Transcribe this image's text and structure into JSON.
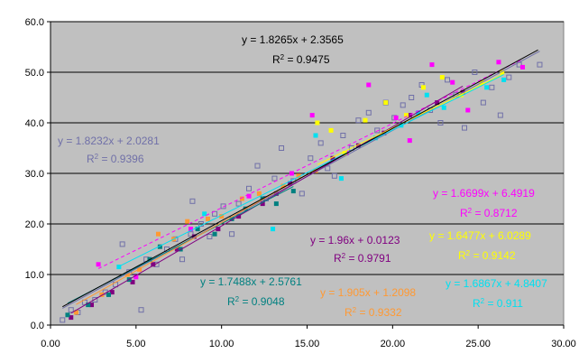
{
  "chart_data": {
    "type": "scatter",
    "title": "",
    "xlabel": "",
    "ylabel": "",
    "xlim": [
      0,
      30
    ],
    "ylim": [
      0,
      60
    ],
    "x_ticks": [
      "0.00",
      "5.00",
      "10.00",
      "15.00",
      "20.00",
      "25.00",
      "30.00"
    ],
    "y_ticks": [
      "0.0",
      "10.0",
      "20.0",
      "30.0",
      "40.0",
      "50.0",
      "60.0"
    ],
    "grid": "horizontal",
    "plot_background": "#c0c0c0",
    "legend": "none",
    "series": [
      {
        "color": "#7070a8",
        "marker": "hollow-square",
        "line_dash": "none",
        "slope": 1.8232,
        "intercept": 2.0281,
        "equation": "y = 1.8232x + 2.0281",
        "r2_label": "R",
        "r2_value": "= 0.9396",
        "points": [
          [
            0.7,
            1.0
          ],
          [
            1.2,
            3.0
          ],
          [
            1.6,
            2.5
          ],
          [
            2.0,
            4.5
          ],
          [
            2.6,
            5.0
          ],
          [
            3.2,
            6.5
          ],
          [
            3.8,
            8.0
          ],
          [
            4.2,
            16.0
          ],
          [
            4.6,
            10.5
          ],
          [
            5.3,
            3.0
          ],
          [
            5.6,
            13.0
          ],
          [
            6.2,
            12.0
          ],
          [
            6.8,
            15.0
          ],
          [
            7.3,
            17.0
          ],
          [
            7.7,
            13.0
          ],
          [
            8.2,
            18.0
          ],
          [
            8.3,
            24.5
          ],
          [
            8.8,
            20.0
          ],
          [
            9.3,
            17.5
          ],
          [
            9.6,
            22.0
          ],
          [
            10.1,
            23.5
          ],
          [
            10.6,
            18.0
          ],
          [
            11.0,
            24.0
          ],
          [
            11.6,
            27.0
          ],
          [
            12.1,
            31.5
          ],
          [
            12.6,
            25.0
          ],
          [
            13.1,
            29.0
          ],
          [
            13.5,
            35.0
          ],
          [
            14.2,
            28.5
          ],
          [
            14.7,
            26.0
          ],
          [
            15.2,
            33.0
          ],
          [
            15.8,
            36.0
          ],
          [
            16.2,
            31.0
          ],
          [
            16.6,
            29.5
          ],
          [
            17.1,
            37.5
          ],
          [
            17.6,
            35.0
          ],
          [
            18.0,
            40.5
          ],
          [
            18.6,
            42.0
          ],
          [
            19.1,
            38.5
          ],
          [
            19.6,
            44.0
          ],
          [
            20.1,
            41.0
          ],
          [
            20.6,
            43.5
          ],
          [
            21.1,
            45.0
          ],
          [
            21.7,
            47.5
          ],
          [
            22.2,
            42.5
          ],
          [
            22.8,
            40.0
          ],
          [
            23.2,
            48.5
          ],
          [
            23.7,
            45.5
          ],
          [
            24.2,
            39.0
          ],
          [
            24.8,
            50.0
          ],
          [
            25.3,
            44.0
          ],
          [
            25.8,
            47.0
          ],
          [
            26.3,
            41.5
          ],
          [
            26.8,
            49.0
          ],
          [
            27.4,
            51.5
          ],
          [
            28.6,
            51.5
          ]
        ]
      },
      {
        "color": "#ff00ff",
        "marker": "filled-square",
        "line_dash": "dashed",
        "slope": 1.6699,
        "intercept": 6.4919,
        "equation": "y = 1.6699x + 6.4919",
        "r2_label": "R",
        "r2_value": "= 0.8712",
        "points": [
          [
            2.8,
            12.0
          ],
          [
            5.0,
            9.5
          ],
          [
            8.2,
            19.0
          ],
          [
            11.6,
            25.5
          ],
          [
            14.1,
            30.0
          ],
          [
            15.3,
            41.5
          ],
          [
            17.3,
            34.0
          ],
          [
            18.6,
            47.5
          ],
          [
            20.2,
            41.0
          ],
          [
            21.0,
            36.5
          ],
          [
            22.3,
            51.5
          ],
          [
            23.5,
            48.0
          ],
          [
            24.4,
            42.5
          ],
          [
            26.2,
            52.0
          ],
          [
            27.6,
            51.0
          ]
        ]
      },
      {
        "color": "#800080",
        "marker": "filled-square",
        "line_dash": "solid",
        "slope": 1.96,
        "intercept": 0.0123,
        "equation": "y = 1.96x + 0.0123",
        "r2_label": "R",
        "r2_value": "= 0.9791",
        "points": [
          [
            1.2,
            1.5
          ],
          [
            2.4,
            4.0
          ],
          [
            3.6,
            6.5
          ],
          [
            4.8,
            8.5
          ],
          [
            6.0,
            12.0
          ],
          [
            7.4,
            15.0
          ],
          [
            8.4,
            17.5
          ],
          [
            9.8,
            19.0
          ],
          [
            11.0,
            21.5
          ],
          [
            12.4,
            24.0
          ],
          [
            13.2,
            26.0
          ],
          [
            14.0,
            28.0
          ],
          [
            16.5,
            33.0
          ],
          [
            18.0,
            35.5
          ],
          [
            19.5,
            38.0
          ],
          [
            21.0,
            41.5
          ],
          [
            22.6,
            44.0
          ],
          [
            24.1,
            46.0
          ]
        ]
      },
      {
        "color": "#ffff00",
        "marker": "filled-square",
        "line_dash": "solid",
        "slope": 1.6477,
        "intercept": 6.0289,
        "equation": "y = 1.6477x + 6.0289",
        "r2_label": "R",
        "r2_value": "= 0.9142",
        "points": [
          [
            15.6,
            40.0
          ],
          [
            16.4,
            38.5
          ],
          [
            17.2,
            34.0
          ],
          [
            18.4,
            40.5
          ],
          [
            19.6,
            44.0
          ],
          [
            20.8,
            41.5
          ],
          [
            21.8,
            47.0
          ],
          [
            22.9,
            49.0
          ],
          [
            24.0,
            45.5
          ],
          [
            25.2,
            48.0
          ],
          [
            26.4,
            50.0
          ]
        ]
      },
      {
        "color": "#00e0f0",
        "marker": "filled-square",
        "line_dash": "solid",
        "slope": 1.6867,
        "intercept": 4.8407,
        "equation": "y = 1.6867x + 4.8407",
        "r2_label": "R",
        "r2_value": "= 0.911",
        "points": [
          [
            4.0,
            11.5
          ],
          [
            9.0,
            22.0
          ],
          [
            13.0,
            19.0
          ],
          [
            15.5,
            37.5
          ],
          [
            17.0,
            29.0
          ],
          [
            19.0,
            37.0
          ],
          [
            20.5,
            39.5
          ],
          [
            21.5,
            42.0
          ],
          [
            22.0,
            45.5
          ],
          [
            23.0,
            43.0
          ],
          [
            25.5,
            47.0
          ],
          [
            26.5,
            48.5
          ]
        ]
      },
      {
        "color": "#008080",
        "marker": "filled-square",
        "line_dash": "solid",
        "slope": 1.7488,
        "intercept": 2.5761,
        "equation": "y = 1.7488x + 2.5761",
        "r2_label": "R",
        "r2_value": "= 0.9048",
        "points": [
          [
            1.0,
            2.0
          ],
          [
            2.2,
            4.0
          ],
          [
            3.4,
            6.0
          ],
          [
            4.6,
            9.0
          ],
          [
            5.8,
            13.0
          ],
          [
            6.4,
            15.5
          ],
          [
            7.6,
            15.0
          ],
          [
            8.6,
            19.0
          ],
          [
            9.6,
            18.0
          ],
          [
            10.6,
            21.0
          ],
          [
            11.4,
            23.0
          ],
          [
            12.4,
            25.0
          ],
          [
            13.2,
            24.0
          ],
          [
            14.2,
            26.5
          ]
        ]
      },
      {
        "color": "#ff9933",
        "marker": "filled-square",
        "line_dash": "solid",
        "slope": 1.905,
        "intercept": 1.2098,
        "equation": "y = 1.905x + 1.2098",
        "r2_label": "R",
        "r2_value": "= 0.9332",
        "points": [
          [
            1.5,
            2.5
          ],
          [
            3.0,
            6.0
          ],
          [
            4.5,
            10.0
          ],
          [
            5.2,
            11.0
          ],
          [
            6.3,
            18.0
          ],
          [
            7.2,
            17.0
          ],
          [
            8.0,
            20.5
          ],
          [
            9.2,
            21.0
          ],
          [
            10.0,
            21.5
          ],
          [
            11.2,
            25.0
          ],
          [
            12.2,
            26.0
          ],
          [
            13.6,
            27.5
          ],
          [
            14.5,
            29.5
          ],
          [
            15.5,
            30.5
          ]
        ]
      },
      {
        "color": "#000000",
        "marker": "none",
        "line_dash": "solid",
        "slope": 1.8265,
        "intercept": 2.3565,
        "equation": "y = 1.8265x + 2.3565",
        "r2_label": "R",
        "r2_value": "= 0.9475",
        "points": []
      }
    ]
  }
}
